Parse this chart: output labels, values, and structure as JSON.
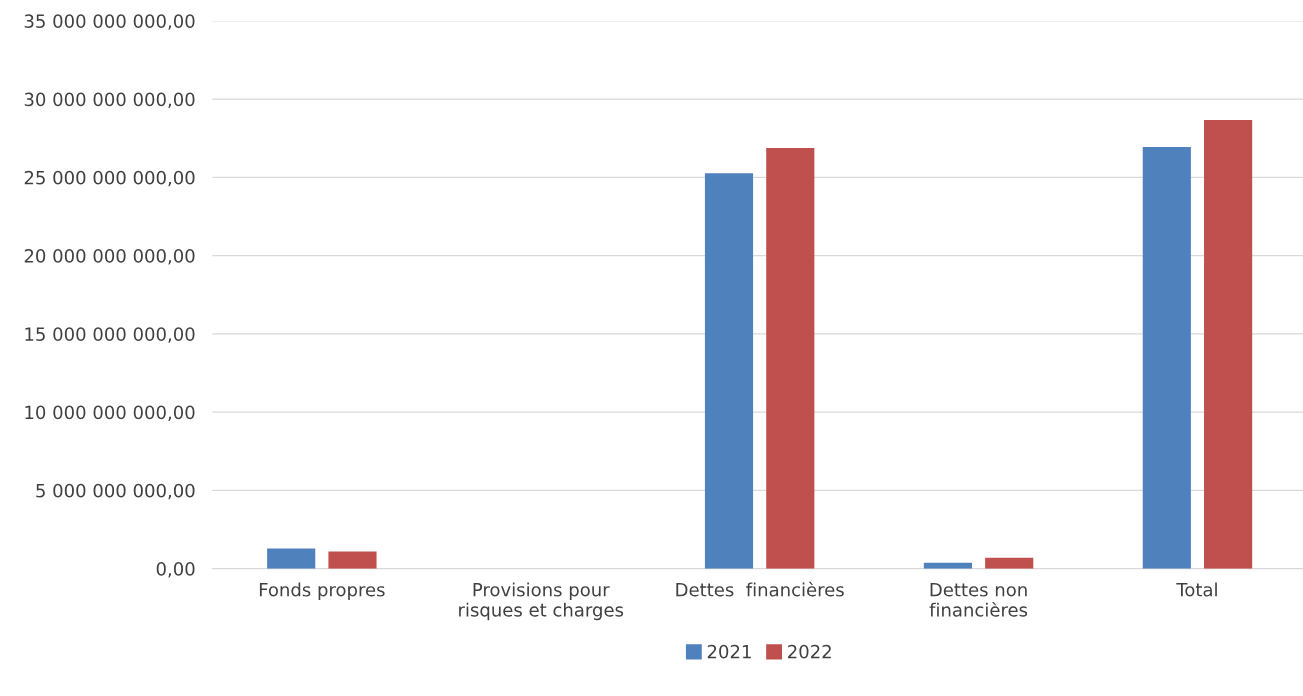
{
  "chart_data": {
    "type": "bar",
    "categories": [
      "Fonds propres",
      "Provisions pour\nrisques et charges",
      "Dettes  financières",
      "Dettes non\nfinancières",
      "Total"
    ],
    "series": [
      {
        "name": "2021",
        "color": "#4f81bd",
        "values": [
          1280000000.0,
          0,
          25270000000.0,
          380000000.0,
          26940000000.0
        ]
      },
      {
        "name": "2022",
        "color": "#c0504d",
        "values": [
          1100000000.0,
          0,
          26870000000.0,
          700000000.0,
          28660000000.0
        ]
      }
    ],
    "ylim": [
      0,
      35000000000
    ],
    "yticks": [
      {
        "value": 0,
        "label": "0,00"
      },
      {
        "value": 5000000000,
        "label": "5 000 000 000,00"
      },
      {
        "value": 10000000000,
        "label": "10 000 000 000,00"
      },
      {
        "value": 15000000000,
        "label": "15 000 000 000,00"
      },
      {
        "value": 20000000000,
        "label": "20 000 000 000,00"
      },
      {
        "value": 25000000000,
        "label": "25 000 000 000,00"
      },
      {
        "value": 30000000000,
        "label": "30 000 000 000,00"
      },
      {
        "value": 35000000000,
        "label": "35 000 000 000,00"
      }
    ],
    "grid": "y",
    "legend": "bottom"
  }
}
